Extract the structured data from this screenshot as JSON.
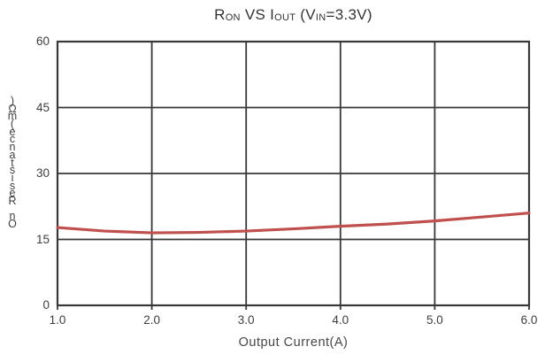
{
  "chart_data": {
    "type": "line",
    "title": "R_ON VS I_OUT (V_IN=3.3V)",
    "title_segments": [
      {
        "text": "R",
        "sub": false
      },
      {
        "text": "ON",
        "sub": true
      },
      {
        "text": " VS I",
        "sub": false
      },
      {
        "text": "OUT",
        "sub": true
      },
      {
        "text": " (V",
        "sub": false
      },
      {
        "text": "IN",
        "sub": true
      },
      {
        "text": "=3.3V)",
        "sub": false
      }
    ],
    "x": [
      1.0,
      1.5,
      2.0,
      2.5,
      3.0,
      3.5,
      4.0,
      4.5,
      5.0,
      5.5,
      6.0
    ],
    "series": [
      {
        "name": "RON",
        "values": [
          17.7,
          16.9,
          16.5,
          16.6,
          16.9,
          17.4,
          18.0,
          18.5,
          19.2,
          20.1,
          21.0
        ]
      }
    ],
    "xlabel": "Output Current(A)",
    "ylabel": "On Resistance(mΩ)",
    "ylabel_stacked_vertically": true,
    "xlim": [
      1.0,
      6.0
    ],
    "ylim": [
      0,
      60
    ],
    "xticks": [
      "1.0",
      "2.0",
      "3.0",
      "4.0",
      "5.0",
      "6.0"
    ],
    "yticks": [
      "0",
      "15",
      "30",
      "45",
      "60"
    ],
    "grid": true,
    "legend_position": "none",
    "colors": {
      "line": "#c0504d",
      "grid": "#383838",
      "tick_text": "#3d3d3d",
      "title_text": "#333333"
    }
  }
}
